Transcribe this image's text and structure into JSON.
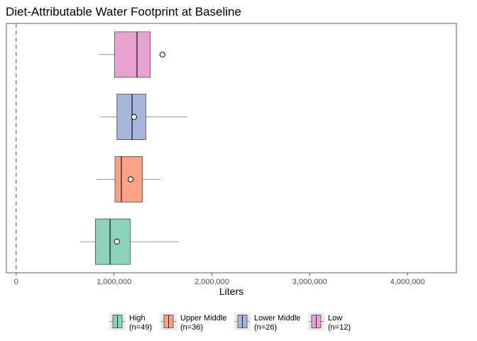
{
  "chart_data": {
    "type": "boxplot",
    "orientation": "horizontal",
    "title": "Diet-Attributable Water Footprint at Baseline",
    "xlabel": "Liters",
    "ylabel": "",
    "xlim": [
      -100000,
      4500000
    ],
    "x_ticks": [
      0,
      1000000,
      2000000,
      3000000,
      4000000
    ],
    "x_tick_labels": [
      "0",
      "1,000,000",
      "2,000,000",
      "3,000,000",
      "4,000,000"
    ],
    "reference_line": {
      "x": 0,
      "style": "dashed"
    },
    "grid": false,
    "legend_position": "bottom",
    "series": [
      {
        "name": "High",
        "n_label": "(n=49)",
        "color": "#8dd3bb",
        "whisker_low": 650000,
        "q1": 810000,
        "median": 960000,
        "q3": 1165000,
        "whisker_high": 1660000,
        "mean": 1030000
      },
      {
        "name": "Upper Middle",
        "n_label": "(n=36)",
        "color": "#fca284",
        "whisker_low": 820000,
        "q1": 1010000,
        "median": 1075000,
        "q3": 1290000,
        "whisker_high": 1475000,
        "mean": 1170000
      },
      {
        "name": "Lower Middle",
        "n_label": "(n=26)",
        "color": "#a6b5da",
        "whisker_low": 865000,
        "q1": 1030000,
        "median": 1185000,
        "q3": 1325000,
        "whisker_high": 1750000,
        "mean": 1205000
      },
      {
        "name": "Low",
        "n_label": "(n=12)",
        "color": "#eaa4d4",
        "whisker_low": 850000,
        "q1": 1005000,
        "median": 1235000,
        "q3": 1370000,
        "whisker_high": 1370000,
        "mean": 1495000
      }
    ]
  }
}
